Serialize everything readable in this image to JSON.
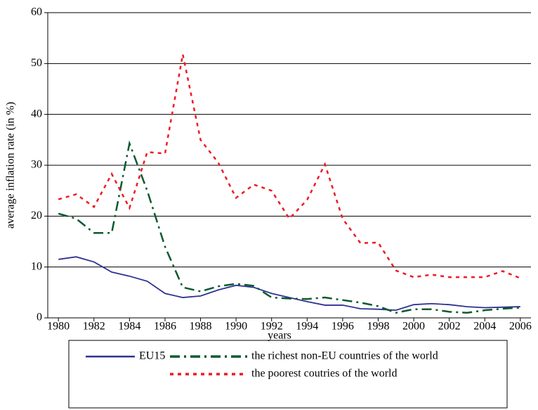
{
  "chart_data": {
    "type": "line",
    "xlabel": "years",
    "ylabel": "average inflation rate (in %)",
    "x": [
      1980,
      1981,
      1982,
      1983,
      1984,
      1985,
      1986,
      1987,
      1988,
      1989,
      1990,
      1991,
      1992,
      1993,
      1994,
      1995,
      1996,
      1997,
      1998,
      1999,
      2000,
      2001,
      2002,
      2003,
      2004,
      2005,
      2006
    ],
    "series": [
      {
        "name": "EU15",
        "color": "#2e3192",
        "values": [
          11.5,
          12,
          11,
          9,
          8.2,
          7.2,
          4.8,
          4,
          4.3,
          5.5,
          6.4,
          6,
          4.8,
          4,
          3.2,
          2.5,
          2.5,
          1.8,
          1.7,
          1.5,
          2.6,
          2.8,
          2.6,
          2.2,
          2,
          2.1,
          2.2
        ]
      },
      {
        "name": "the richest non-EU countries of the world",
        "color": "#0b5a2e",
        "values": [
          20.5,
          19.5,
          16.7,
          16.7,
          34.3,
          25,
          14,
          6,
          5.2,
          6.2,
          6.7,
          6.3,
          4,
          3.8,
          3.7,
          4,
          3.5,
          3,
          2.3,
          1,
          1.7,
          1.7,
          1.2,
          1,
          1.5,
          1.8,
          2
        ]
      },
      {
        "name": "the poorest coutries of the world",
        "color": "#ed1c24",
        "values": [
          23.3,
          24.3,
          21.8,
          28.3,
          21.6,
          32.6,
          32.3,
          51.8,
          35,
          30.5,
          23.6,
          26.2,
          25,
          19.5,
          23.2,
          30.2,
          19.5,
          14.7,
          14.8,
          9.3,
          8,
          8.5,
          8,
          8,
          8,
          9.2,
          7.8
        ]
      }
    ],
    "xlim": [
      1979.4,
      2006.6
    ],
    "xticks": [
      1980,
      1982,
      1984,
      1986,
      1988,
      1990,
      1992,
      1994,
      1996,
      1998,
      2000,
      2002,
      2004,
      2006
    ],
    "ylim": [
      0,
      60
    ],
    "yticks": [
      0,
      10,
      20,
      30,
      40,
      50,
      60
    ],
    "grid": true
  }
}
